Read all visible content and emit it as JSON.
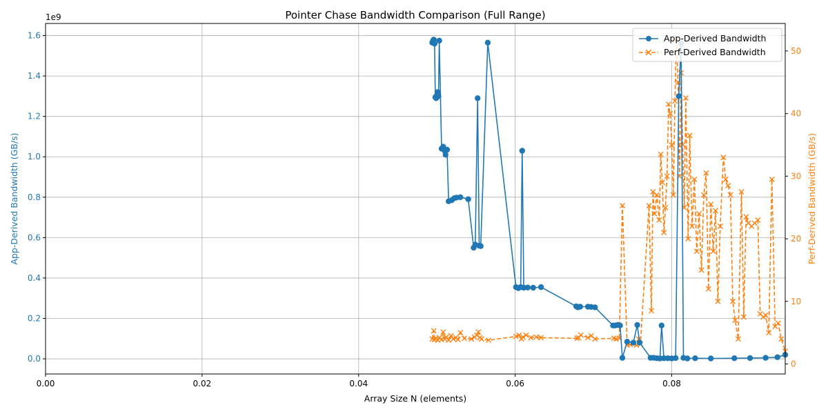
{
  "chart_data": {
    "type": "line",
    "title": "Pointer Chase Bandwidth Comparison (Full Range)",
    "xlabel": "Array Size N (elements)",
    "ylabel_left": "App-Derived Bandwidth (GB/s)",
    "ylabel_right": "Perf-Derived Bandwidth (GB/s)",
    "left_axis_multiplier": "1e9",
    "xlim": [
      0.0,
      0.0945
    ],
    "ylim_left": [
      -75000000,
      1660000000
    ],
    "ylim_right": [
      -1.6,
      54.4
    ],
    "x_ticks": [
      "0.00",
      "0.02",
      "0.04",
      "0.06",
      "0.08"
    ],
    "x_tick_values": [
      0.0,
      0.02,
      0.04,
      0.06,
      0.08
    ],
    "y_left_ticks": [
      "0.0",
      "0.2",
      "0.4",
      "0.6",
      "0.8",
      "1.0",
      "1.2",
      "1.4",
      "1.6"
    ],
    "y_left_tick_values": [
      0,
      200000000,
      400000000,
      600000000,
      800000000,
      1000000000,
      1200000000,
      1400000000,
      1600000000
    ],
    "y_right_ticks": [
      "0",
      "10",
      "20",
      "30",
      "40",
      "50"
    ],
    "y_right_tick_values": [
      0,
      10,
      20,
      30,
      40,
      50
    ],
    "grid": true,
    "legend_position": "top-right",
    "colors": {
      "app": "#1f77b4",
      "perf": "#ff7f0e"
    },
    "series": [
      {
        "name": "App-Derived Bandwidth",
        "axis": "left",
        "marker": "circle",
        "line": "solid",
        "points": [
          [
            0.0494,
            1565000000
          ],
          [
            0.0495,
            1575000000
          ],
          [
            0.0496,
            1580000000
          ],
          [
            0.0497,
            1560000000
          ],
          [
            0.0498,
            1295000000
          ],
          [
            0.0499,
            1290000000
          ],
          [
            0.05,
            1305000000
          ],
          [
            0.0501,
            1320000000
          ],
          [
            0.0502,
            1300000000
          ],
          [
            0.0503,
            1575000000
          ],
          [
            0.0506,
            1040000000
          ],
          [
            0.0508,
            1050000000
          ],
          [
            0.051,
            1030000000
          ],
          [
            0.0511,
            1010000000
          ],
          [
            0.0513,
            1035000000
          ],
          [
            0.0515,
            780000000
          ],
          [
            0.0519,
            785000000
          ],
          [
            0.0522,
            795000000
          ],
          [
            0.0525,
            798000000
          ],
          [
            0.053,
            800000000
          ],
          [
            0.054,
            790000000
          ],
          [
            0.0547,
            550000000
          ],
          [
            0.0549,
            565000000
          ],
          [
            0.0552,
            1290000000
          ],
          [
            0.0554,
            560000000
          ],
          [
            0.0556,
            558000000
          ],
          [
            0.0565,
            1565000000
          ],
          [
            0.0601,
            355000000
          ],
          [
            0.0604,
            350000000
          ],
          [
            0.0607,
            355000000
          ],
          [
            0.0609,
            1030000000
          ],
          [
            0.0611,
            352000000
          ],
          [
            0.0616,
            353000000
          ],
          [
            0.0623,
            352000000
          ],
          [
            0.0633,
            355000000
          ],
          [
            0.0678,
            260000000
          ],
          [
            0.068,
            255000000
          ],
          [
            0.0683,
            258000000
          ],
          [
            0.0693,
            258000000
          ],
          [
            0.0697,
            257000000
          ],
          [
            0.0702,
            255000000
          ],
          [
            0.0725,
            165000000
          ],
          [
            0.0728,
            165000000
          ],
          [
            0.0731,
            168000000
          ],
          [
            0.0734,
            165000000
          ],
          [
            0.0737,
            5000000
          ],
          [
            0.0743,
            85000000
          ],
          [
            0.0751,
            80000000
          ],
          [
            0.0756,
            168000000
          ],
          [
            0.0759,
            80000000
          ],
          [
            0.0773,
            5000000
          ],
          [
            0.0777,
            5000000
          ],
          [
            0.0781,
            3000000
          ],
          [
            0.0785,
            2000000
          ],
          [
            0.0787,
            165000000
          ],
          [
            0.079,
            3000000
          ],
          [
            0.0795,
            3000000
          ],
          [
            0.08,
            2000000
          ],
          [
            0.0805,
            4000000
          ],
          [
            0.0809,
            1300000000
          ],
          [
            0.0812,
            1560000000
          ],
          [
            0.0815,
            5000000
          ],
          [
            0.082,
            2000000
          ],
          [
            0.083,
            3000000
          ],
          [
            0.085,
            2000000
          ],
          [
            0.088,
            3000000
          ],
          [
            0.09,
            4000000
          ],
          [
            0.092,
            5000000
          ],
          [
            0.0935,
            8000000
          ],
          [
            0.0945,
            20000000
          ]
        ]
      },
      {
        "name": "Perf-Derived Bandwidth",
        "axis": "right",
        "marker": "x",
        "line": "dashed",
        "points": [
          [
            0.0494,
            4.0
          ],
          [
            0.0496,
            5.3
          ],
          [
            0.0497,
            3.9
          ],
          [
            0.0499,
            4.1
          ],
          [
            0.0501,
            3.8
          ],
          [
            0.0503,
            4.2
          ],
          [
            0.0506,
            3.9
          ],
          [
            0.0508,
            5.1
          ],
          [
            0.051,
            4.0
          ],
          [
            0.0512,
            4.3
          ],
          [
            0.0515,
            3.8
          ],
          [
            0.0518,
            4.5
          ],
          [
            0.0521,
            4.0
          ],
          [
            0.0524,
            4.2
          ],
          [
            0.0527,
            3.9
          ],
          [
            0.053,
            5.0
          ],
          [
            0.0535,
            4.1
          ],
          [
            0.0544,
            4.0
          ],
          [
            0.0548,
            4.3
          ],
          [
            0.0551,
            4.6
          ],
          [
            0.0553,
            5.1
          ],
          [
            0.0555,
            4.2
          ],
          [
            0.0557,
            4.0
          ],
          [
            0.0566,
            3.8
          ],
          [
            0.0601,
            4.4
          ],
          [
            0.0605,
            4.6
          ],
          [
            0.0608,
            4.0
          ],
          [
            0.061,
            4.3
          ],
          [
            0.0614,
            4.6
          ],
          [
            0.062,
            4.2
          ],
          [
            0.0627,
            4.3
          ],
          [
            0.0633,
            4.2
          ],
          [
            0.0679,
            4.1
          ],
          [
            0.0681,
            4.2
          ],
          [
            0.0684,
            4.6
          ],
          [
            0.0693,
            4.2
          ],
          [
            0.0697,
            4.5
          ],
          [
            0.0702,
            4.0
          ],
          [
            0.0726,
            4.1
          ],
          [
            0.0729,
            4.0
          ],
          [
            0.0733,
            4.1
          ],
          [
            0.0737,
            25.3
          ],
          [
            0.0743,
            3.0
          ],
          [
            0.0747,
            3.1
          ],
          [
            0.0751,
            3.3
          ],
          [
            0.0755,
            3.0
          ],
          [
            0.0758,
            4.0
          ],
          [
            0.076,
            3.2
          ],
          [
            0.0771,
            25.3
          ],
          [
            0.0774,
            8.5
          ],
          [
            0.0776,
            27.5
          ],
          [
            0.0778,
            24.0
          ],
          [
            0.0781,
            27.0
          ],
          [
            0.0784,
            23.0
          ],
          [
            0.0786,
            33.5
          ],
          [
            0.0788,
            29.0
          ],
          [
            0.079,
            21.0
          ],
          [
            0.0792,
            25.0
          ],
          [
            0.0794,
            30.0
          ],
          [
            0.0796,
            41.5
          ],
          [
            0.0798,
            40.0
          ],
          [
            0.08,
            35.0
          ],
          [
            0.0802,
            27.0
          ],
          [
            0.0804,
            42.0
          ],
          [
            0.0806,
            52.0
          ],
          [
            0.0808,
            45.0
          ],
          [
            0.081,
            30.0
          ],
          [
            0.0812,
            46.5
          ],
          [
            0.0814,
            35.0
          ],
          [
            0.0816,
            25.0
          ],
          [
            0.0818,
            42.5
          ],
          [
            0.0821,
            20.0
          ],
          [
            0.0823,
            36.5
          ],
          [
            0.0826,
            22.0
          ],
          [
            0.0829,
            29.5
          ],
          [
            0.0832,
            18.0
          ],
          [
            0.0835,
            24.0
          ],
          [
            0.0838,
            15.0
          ],
          [
            0.0841,
            27.0
          ],
          [
            0.0844,
            30.5
          ],
          [
            0.0847,
            12.0
          ],
          [
            0.085,
            25.5
          ],
          [
            0.0853,
            18.0
          ],
          [
            0.0856,
            24.5
          ],
          [
            0.0859,
            10.0
          ],
          [
            0.0862,
            22.0
          ],
          [
            0.0866,
            33.0
          ],
          [
            0.0869,
            29.5
          ],
          [
            0.0872,
            28.5
          ],
          [
            0.0875,
            27.0
          ],
          [
            0.0878,
            10.0
          ],
          [
            0.0881,
            7.0
          ],
          [
            0.0885,
            4.0
          ],
          [
            0.0889,
            27.5
          ],
          [
            0.0892,
            7.5
          ],
          [
            0.0895,
            23.5
          ],
          [
            0.0898,
            22.5
          ],
          [
            0.0902,
            22.0
          ],
          [
            0.0906,
            22.5
          ],
          [
            0.091,
            23.0
          ],
          [
            0.0913,
            8.0
          ],
          [
            0.0917,
            7.5
          ],
          [
            0.092,
            7.8
          ],
          [
            0.0924,
            5.0
          ],
          [
            0.0928,
            29.5
          ],
          [
            0.0932,
            6.0
          ],
          [
            0.0936,
            6.5
          ],
          [
            0.094,
            4.0
          ],
          [
            0.0945,
            2.0
          ]
        ]
      }
    ]
  }
}
